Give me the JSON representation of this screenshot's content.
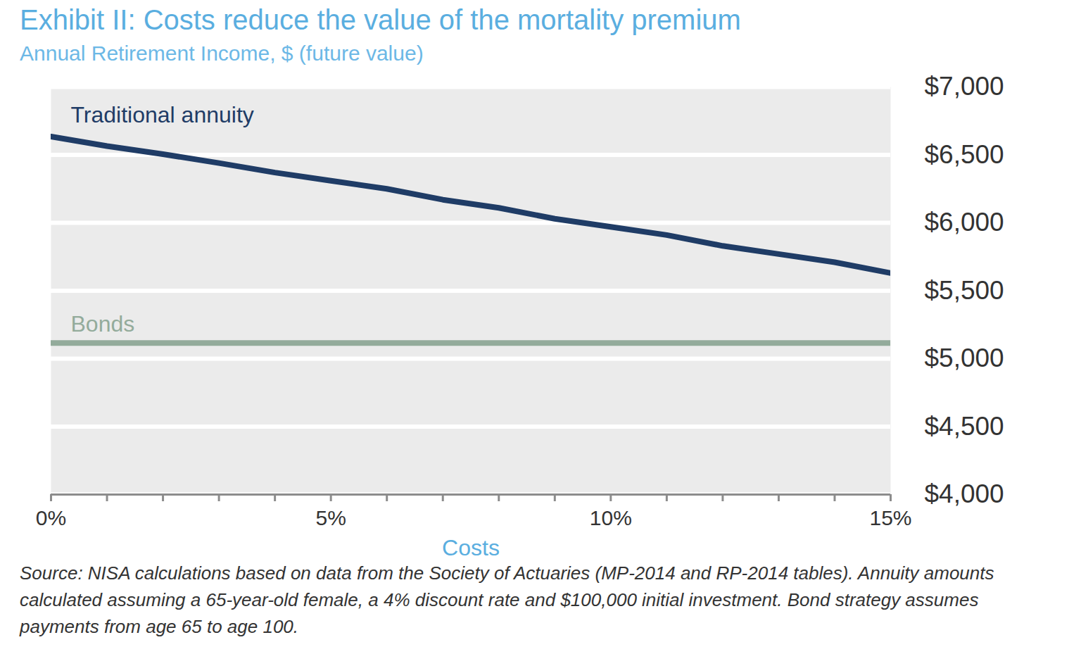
{
  "chart_data": {
    "type": "line",
    "title": "Exhibit II: Costs reduce the value of the mortality premium",
    "subtitle": "Annual Retirement Income, $ (future value)",
    "x_label": "Costs",
    "caption": "Source: NISA calculations based on data from the Society of Actuaries (MP-2014 and RP-2014 tables). Annuity amounts calculated assuming a 65-year-old female, a 4% discount rate and $100,000 initial investment. Bond strategy assumes payments from age 65 to age 100.",
    "x": [
      0,
      1,
      2,
      3,
      4,
      5,
      6,
      7,
      8,
      9,
      10,
      11,
      12,
      13,
      14,
      15
    ],
    "series": [
      {
        "name": "Traditional annuity",
        "color": "#1f3c66",
        "values": [
          6635,
          6565,
          6505,
          6440,
          6370,
          6310,
          6250,
          6170,
          6110,
          6030,
          5970,
          5910,
          5830,
          5770,
          5710,
          5630
        ]
      },
      {
        "name": "Bonds",
        "color": "#93ab9b",
        "values": [
          5115,
          5115,
          5115,
          5115,
          5115,
          5115,
          5115,
          5115,
          5115,
          5115,
          5115,
          5115,
          5115,
          5115,
          5115,
          5115
        ]
      }
    ],
    "xlim": [
      0,
      15
    ],
    "xticks": [
      {
        "value": 0,
        "label": "0%"
      },
      {
        "value": 1,
        "label": null
      },
      {
        "value": 2,
        "label": null
      },
      {
        "value": 3,
        "label": null
      },
      {
        "value": 4,
        "label": null
      },
      {
        "value": 5,
        "label": "5%"
      },
      {
        "value": 6,
        "label": null
      },
      {
        "value": 7,
        "label": null
      },
      {
        "value": 8,
        "label": null
      },
      {
        "value": 9,
        "label": null
      },
      {
        "value": 10,
        "label": "10%"
      },
      {
        "value": 11,
        "label": null
      },
      {
        "value": 12,
        "label": null
      },
      {
        "value": 13,
        "label": null
      },
      {
        "value": 14,
        "label": null
      },
      {
        "value": 15,
        "label": "15%"
      }
    ],
    "ylim": [
      4000,
      7000
    ],
    "yticks": [
      {
        "value": 4000,
        "label": "$4,000"
      },
      {
        "value": 4500,
        "label": "$4,500"
      },
      {
        "value": 5000,
        "label": "$5,000"
      },
      {
        "value": 5500,
        "label": "$5,500"
      },
      {
        "value": 6000,
        "label": "$6,000"
      },
      {
        "value": 6500,
        "label": "$6,500"
      },
      {
        "value": 7000,
        "label": "$7,000"
      }
    ],
    "grid": true
  }
}
